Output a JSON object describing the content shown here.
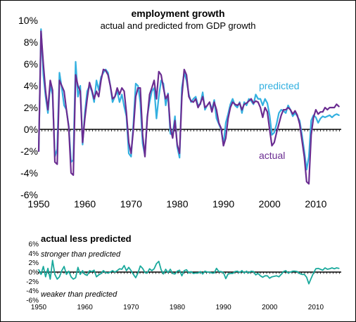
{
  "chart_data": [
    {
      "type": "line",
      "title": "employment growth",
      "subtitle": "actual and predicted from GDP growth",
      "xlabel": "",
      "ylabel": "",
      "xlim": [
        1950,
        2015.5
      ],
      "ylim": [
        -6,
        10
      ],
      "x_ticks": [
        "1950",
        "1960",
        "1970",
        "1980",
        "1990",
        "2000",
        "2010"
      ],
      "y_ticks": [
        "10%",
        "8%",
        "6%",
        "4%",
        "2%",
        "0%",
        "-2%",
        "-4%",
        "-6%"
      ],
      "grid": false,
      "annotations": [
        "predicted",
        "actual"
      ],
      "series": [
        {
          "name": "predicted",
          "color": "#33b0e0",
          "x": [
            1950,
            1950.5,
            1951,
            1951.5,
            1952,
            1952.5,
            1953,
            1953.5,
            1954,
            1954.5,
            1955,
            1955.5,
            1956,
            1956.5,
            1957,
            1957.5,
            1958,
            1958.5,
            1959,
            1959.5,
            1960,
            1960.5,
            1961,
            1961.5,
            1962,
            1962.5,
            1963,
            1963.5,
            1964,
            1964.5,
            1965,
            1965.5,
            1966,
            1966.5,
            1967,
            1967.5,
            1968,
            1968.5,
            1969,
            1969.5,
            1970,
            1970.5,
            1971,
            1971.5,
            1972,
            1972.5,
            1973,
            1973.5,
            1974,
            1974.5,
            1975,
            1975.5,
            1976,
            1976.5,
            1977,
            1977.5,
            1978,
            1978.5,
            1979,
            1979.5,
            1980,
            1980.5,
            1981,
            1981.5,
            1982,
            1982.5,
            1983,
            1983.5,
            1984,
            1984.5,
            1985,
            1985.5,
            1986,
            1986.5,
            1987,
            1987.5,
            1988,
            1988.5,
            1989,
            1989.5,
            1990,
            1990.5,
            1991,
            1991.5,
            1992,
            1992.5,
            1993,
            1993.5,
            1994,
            1994.5,
            1995,
            1995.5,
            1996,
            1996.5,
            1997,
            1997.5,
            1998,
            1998.5,
            1999,
            1999.5,
            2000,
            2000.5,
            2001,
            2001.5,
            2002,
            2002.5,
            2003,
            2003.5,
            2004,
            2004.5,
            2005,
            2005.5,
            2006,
            2006.5,
            2007,
            2007.5,
            2008,
            2008.5,
            2009,
            2009.5,
            2010,
            2010.5,
            2011,
            2011.5,
            2012,
            2012.5,
            2013,
            2013.5,
            2014,
            2014.5,
            2015
          ],
          "y": [
            -2,
            9.2,
            5,
            3,
            1.5,
            4,
            3.2,
            -2.5,
            -1.8,
            5.2,
            3.8,
            2.2,
            1.8,
            0.3,
            -3,
            -2.8,
            6.2,
            3,
            4,
            -1.4,
            1.5,
            3.5,
            4,
            3.5,
            2.5,
            4.5,
            3.6,
            4.8,
            5.2,
            5.5,
            5.2,
            4,
            2.5,
            3,
            3.5,
            2.5,
            3.2,
            2.1,
            1.2,
            -2.2,
            -2.5,
            0.5,
            4.2,
            4,
            2.5,
            -1.3,
            -2.4,
            1.2,
            2.5,
            3.5,
            3.8,
            1,
            3,
            4.5,
            4.2,
            2.2,
            3.3,
            -0.4,
            -0.5,
            1.2,
            -1.6,
            -2.6,
            3.8,
            5.2,
            4.5,
            3.2,
            2.5,
            2.8,
            3,
            2.2,
            2.3,
            3.4,
            1.8,
            2.2,
            2.5,
            1.8,
            2.7,
            1,
            0.5,
            0,
            -1.4,
            0.6,
            1.4,
            2.3,
            2.8,
            2.2,
            2,
            2.5,
            1.5,
            2.5,
            2.2,
            2.8,
            2.6,
            2.3,
            3.2,
            2.8,
            2.8,
            2.2,
            2.8,
            2.4,
            1.3,
            -0.5,
            -0.3,
            0.5,
            1.5,
            1.8,
            1.7,
            1.5,
            2.2,
            1.8,
            1.2,
            1.5,
            1.2,
            0.8,
            -0.5,
            -2,
            -3.7,
            -2.5,
            0.8,
            1.3,
            1.1,
            0.6,
            1,
            1.2,
            1.1,
            1.2,
            1.3,
            1.1,
            1.3,
            1.4,
            1.3
          ]
        },
        {
          "name": "actual",
          "color": "#6a2c91",
          "x": [
            1950,
            1950.5,
            1951,
            1951.5,
            1952,
            1952.5,
            1953,
            1953.5,
            1954,
            1954.5,
            1955,
            1955.5,
            1956,
            1956.5,
            1957,
            1957.5,
            1958,
            1958.5,
            1959,
            1959.5,
            1960,
            1960.5,
            1961,
            1961.5,
            1962,
            1962.5,
            1963,
            1963.5,
            1964,
            1964.5,
            1965,
            1965.5,
            1966,
            1966.5,
            1967,
            1967.5,
            1968,
            1968.5,
            1969,
            1969.5,
            1970,
            1970.5,
            1971,
            1971.5,
            1972,
            1972.5,
            1973,
            1973.5,
            1974,
            1974.5,
            1975,
            1975.5,
            1976,
            1976.5,
            1977,
            1977.5,
            1978,
            1978.5,
            1979,
            1979.5,
            1980,
            1980.5,
            1981,
            1981.5,
            1982,
            1982.5,
            1983,
            1983.5,
            1984,
            1984.5,
            1985,
            1985.5,
            1986,
            1986.5,
            1987,
            1987.5,
            1988,
            1988.5,
            1989,
            1989.5,
            1990,
            1990.5,
            1991,
            1991.5,
            1992,
            1992.5,
            1993,
            1993.5,
            1994,
            1994.5,
            1995,
            1995.5,
            1996,
            1996.5,
            1997,
            1997.5,
            1998,
            1998.5,
            1999,
            1999.5,
            2000,
            2000.5,
            2001,
            2001.5,
            2002,
            2002.5,
            2003,
            2003.5,
            2004,
            2004.5,
            2005,
            2005.5,
            2006,
            2006.5,
            2007,
            2007.5,
            2008,
            2008.5,
            2009,
            2009.5,
            2010,
            2010.5,
            2011,
            2011.5,
            2012,
            2012.5,
            2013,
            2013.5,
            2014,
            2014.5,
            2015
          ],
          "y": [
            -2,
            9,
            6,
            3.5,
            1.8,
            4.5,
            3.6,
            -3,
            -3.2,
            4.5,
            4,
            3.5,
            1.8,
            0.2,
            -4,
            -4.2,
            5,
            4,
            3.5,
            -1.2,
            1,
            2.8,
            4.3,
            3.6,
            2.8,
            3.5,
            3,
            4.5,
            5.5,
            5.4,
            5,
            4,
            2.8,
            3,
            3.8,
            3.2,
            3.8,
            3.5,
            1.5,
            -1.2,
            -2.2,
            0,
            3,
            3.8,
            3.8,
            -0.5,
            -2.5,
            1,
            3.2,
            3.8,
            4.5,
            2.8,
            5.3,
            5,
            3.8,
            2.8,
            3.2,
            0.2,
            -0.8,
            0.8,
            -1.4,
            -2.2,
            3,
            5.5,
            5,
            3,
            2.6,
            2.5,
            2.8,
            2,
            2.4,
            3,
            2,
            2.2,
            2.5,
            1.6,
            2.5,
            1.8,
            0.6,
            0.1,
            -1.5,
            -0.8,
            1,
            2,
            2.5,
            2.3,
            2.2,
            2.4,
            1.8,
            2.3,
            2.4,
            2.6,
            2.8,
            2.4,
            2.6,
            2.5,
            2,
            1.1,
            2,
            1.6,
            0,
            -1.5,
            -1.2,
            -0.3,
            0.5,
            1.3,
            1.8,
            1.8,
            2,
            1.8,
            1.4,
            1.7,
            1.3,
            0.5,
            -1,
            -2.5,
            -4.8,
            -5,
            -0.5,
            1.1,
            1.8,
            1.4,
            1.6,
            1.6,
            2,
            1.8,
            2,
            2,
            2,
            2.3,
            2.1
          ]
        }
      ]
    },
    {
      "type": "line",
      "title": "actual less predicted",
      "xlabel": "",
      "ylabel": "",
      "xlim": [
        1950,
        2015.5
      ],
      "ylim": [
        -6,
        6
      ],
      "x_ticks": [
        "1950",
        "1960",
        "1970",
        "1980",
        "1990",
        "2000",
        "2010"
      ],
      "y_ticks": [
        "6%",
        "4%",
        "2%",
        "0%",
        "-2%",
        "-4%",
        "-6%"
      ],
      "grid": false,
      "annotations": [
        "stronger than predicted",
        "weaker than predicted"
      ],
      "series": [
        {
          "color": "#1aa99c",
          "x": [
            1950,
            1950.5,
            1951,
            1951.5,
            1952,
            1952.5,
            1953,
            1953.5,
            1954,
            1954.5,
            1955,
            1955.5,
            1956,
            1956.5,
            1957,
            1957.5,
            1958,
            1958.5,
            1959,
            1959.5,
            1960,
            1960.5,
            1961,
            1961.5,
            1962,
            1962.5,
            1963,
            1963.5,
            1964,
            1964.5,
            1965,
            1965.5,
            1966,
            1966.5,
            1967,
            1967.5,
            1968,
            1968.5,
            1969,
            1969.5,
            1970,
            1970.5,
            1971,
            1971.5,
            1972,
            1972.5,
            1973,
            1973.5,
            1974,
            1974.5,
            1975,
            1975.5,
            1976,
            1976.5,
            1977,
            1977.5,
            1978,
            1978.5,
            1979,
            1979.5,
            1980,
            1980.5,
            1981,
            1981.5,
            1982,
            1982.5,
            1983,
            1983.5,
            1984,
            1984.5,
            1985,
            1985.5,
            1986,
            1986.5,
            1987,
            1987.5,
            1988,
            1988.5,
            1989,
            1989.5,
            1990,
            1990.5,
            1991,
            1991.5,
            1992,
            1992.5,
            1993,
            1993.5,
            1994,
            1994.5,
            1995,
            1995.5,
            1996,
            1996.5,
            1997,
            1997.5,
            1998,
            1998.5,
            1999,
            1999.5,
            2000,
            2000.5,
            2001,
            2001.5,
            2002,
            2002.5,
            2003,
            2003.5,
            2004,
            2004.5,
            2005,
            2005.5,
            2006,
            2006.5,
            2007,
            2007.5,
            2008,
            2008.5,
            2009,
            2009.5,
            2010,
            2010.5,
            2011,
            2011.5,
            2012,
            2012.5,
            2013,
            2013.5,
            2014,
            2014.5,
            2015
          ],
          "y": [
            0.5,
            -0.5,
            1.2,
            -1,
            0.8,
            -1.5,
            2.5,
            -0.5,
            -1.5,
            -1,
            0.3,
            1.2,
            -0.5,
            0.2,
            -1,
            -1.5,
            -1.2,
            1,
            -0.5,
            0.3,
            -0.5,
            -0.7,
            0.3,
            0.1,
            0.4,
            -1,
            -0.6,
            -0.3,
            0.3,
            -0.1,
            -0.2,
            0,
            0.3,
            0,
            0.3,
            0.7,
            0.6,
            1.4,
            0.3,
            1,
            0.3,
            -0.5,
            -1.2,
            -0.2,
            1.3,
            0.8,
            -0.1,
            -0.2,
            0.7,
            0.3,
            0.7,
            1.8,
            2.3,
            0.5,
            -0.4,
            0.6,
            -0.1,
            0.6,
            -0.3,
            -0.4,
            0.2,
            0.4,
            -0.8,
            0.3,
            0.5,
            -0.2,
            0.1,
            -0.3,
            -0.2,
            -0.2,
            0.1,
            -0.4,
            0.2,
            0,
            0,
            -0.2,
            -0.2,
            0.8,
            0.1,
            0.1,
            -0.1,
            -1.4,
            -0.4,
            -0.3,
            -0.3,
            0.1,
            0.2,
            -0.1,
            0.3,
            -0.2,
            0.2,
            -0.2,
            0.2,
            0.1,
            -0.6,
            -0.3,
            -0.8,
            -1.1,
            -0.8,
            -0.8,
            -1.3,
            -1,
            -0.9,
            -0.8,
            -1,
            -0.5,
            0.1,
            0.3,
            -0.2,
            0,
            0.2,
            0.2,
            0.1,
            -0.3,
            -0.5,
            -0.5,
            -1.1,
            -2.5,
            -1.3,
            -0.2,
            0.7,
            0.8,
            0.6,
            0.4,
            0.9,
            0.6,
            0.7,
            0.9,
            0.7,
            0.9,
            0.8
          ]
        }
      ]
    }
  ]
}
